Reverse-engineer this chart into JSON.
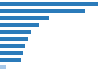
{
  "values": [
    20.3,
    17.5,
    10.2,
    8.0,
    6.5,
    5.8,
    5.2,
    4.8,
    4.3,
    1.2
  ],
  "bar_color": "#2b7bba",
  "last_bar_color": "#a8c8e8",
  "background_color": "#ffffff",
  "figsize": [
    1.0,
    0.71
  ],
  "dpi": 100
}
